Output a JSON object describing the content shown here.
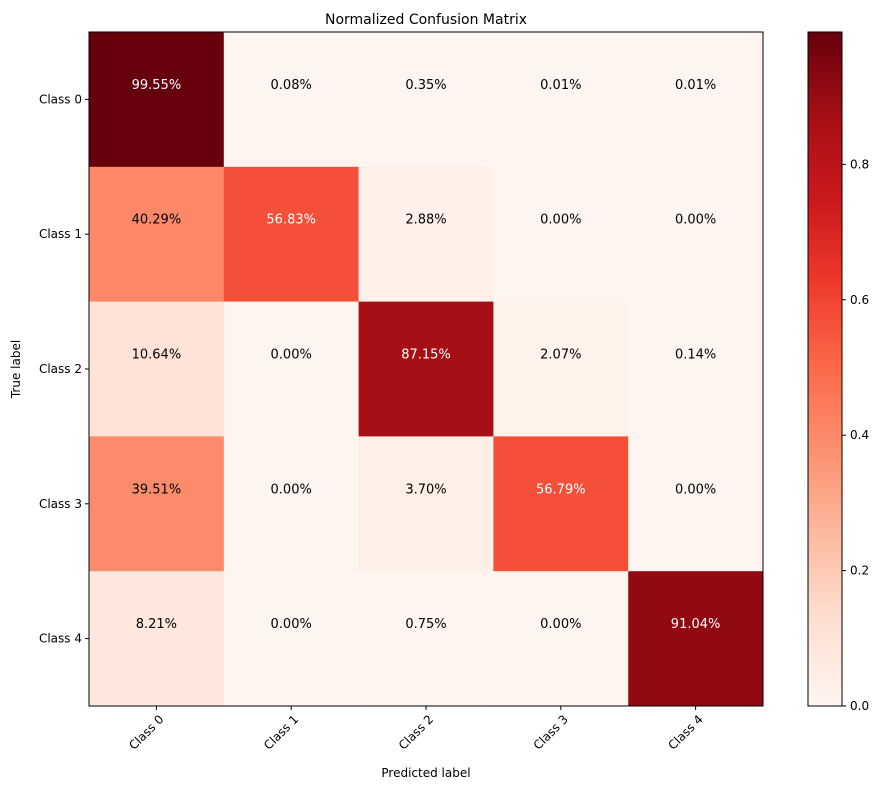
{
  "chart_data": {
    "type": "heatmap",
    "title": "Normalized Confusion Matrix",
    "xlabel": "Predicted label",
    "ylabel": "True label",
    "x_categories": [
      "Class 0",
      "Class 1",
      "Class 2",
      "Class 3",
      "Class 4"
    ],
    "y_categories": [
      "Class 0",
      "Class 1",
      "Class 2",
      "Class 3",
      "Class 4"
    ],
    "values": [
      [
        0.9955,
        0.0008,
        0.0035,
        0.0001,
        0.0001
      ],
      [
        0.4029,
        0.5683,
        0.0288,
        0.0,
        0.0
      ],
      [
        0.1064,
        0.0,
        0.8715,
        0.0207,
        0.0014
      ],
      [
        0.3951,
        0.0,
        0.037,
        0.5679,
        0.0
      ],
      [
        0.0821,
        0.0,
        0.0075,
        0.0,
        0.9104
      ]
    ],
    "cell_labels": [
      [
        "99.55%",
        "0.08%",
        "0.35%",
        "0.01%",
        "0.01%"
      ],
      [
        "40.29%",
        "56.83%",
        "2.88%",
        "0.00%",
        "0.00%"
      ],
      [
        "10.64%",
        "0.00%",
        "87.15%",
        "2.07%",
        "0.14%"
      ],
      [
        "39.51%",
        "0.00%",
        "3.70%",
        "56.79%",
        "0.00%"
      ],
      [
        "8.21%",
        "0.00%",
        "0.75%",
        "0.00%",
        "91.04%"
      ]
    ],
    "colormap": "Reds",
    "colorbar": {
      "range": [
        0.0,
        0.9955
      ],
      "ticks": [
        0.0,
        0.2,
        0.4,
        0.6,
        0.8
      ],
      "tick_labels": [
        "0.0",
        "0.2",
        "0.4",
        "0.6",
        "0.8"
      ]
    },
    "text_color_light": "#ffffff",
    "text_color_dark": "#000000",
    "grid": false,
    "x_tick_rotation": 45
  }
}
